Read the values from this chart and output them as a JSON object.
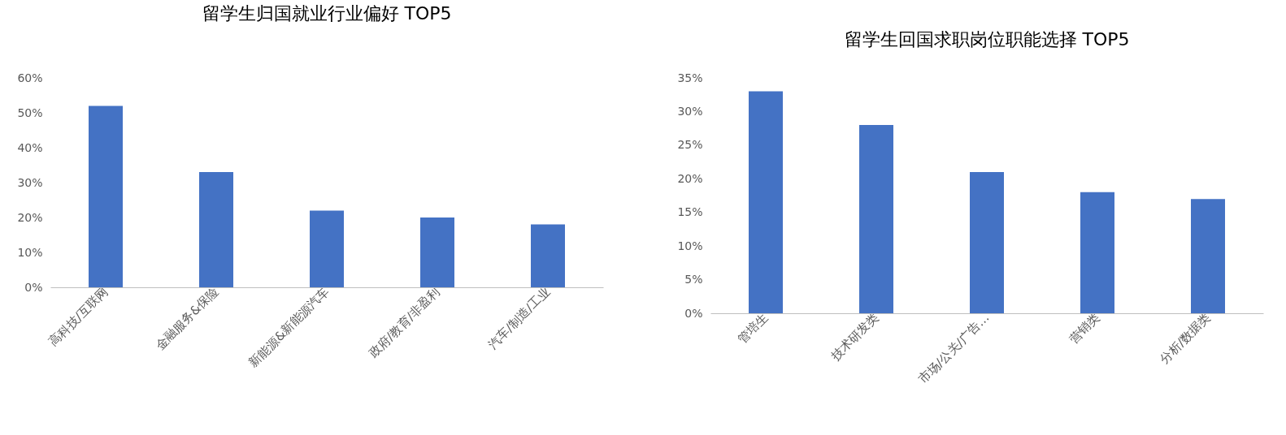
{
  "chart_data": [
    {
      "type": "bar",
      "title": "留学生归国就业行业偏好 TOP5",
      "categories": [
        "高科技/互联网",
        "金融服务&保险",
        "新能源&新能源汽车",
        "政府/教育/非盈利",
        "汽车/制造/工业"
      ],
      "values": [
        52,
        33,
        22,
        20,
        18
      ],
      "color": "#4472c4",
      "ylim": [
        0,
        60
      ],
      "yticks": [
        {
          "value": 0,
          "label": "0%"
        },
        {
          "value": 10,
          "label": "10%"
        },
        {
          "value": 20,
          "label": "20%"
        },
        {
          "value": 30,
          "label": "30%"
        },
        {
          "value": 40,
          "label": "40%"
        },
        {
          "value": 50,
          "label": "50%"
        },
        {
          "value": 60,
          "label": "60%"
        }
      ],
      "grid": false
    },
    {
      "type": "bar",
      "title": "留学生回国求职岗位职能选择 TOP5",
      "categories": [
        "管培生",
        "技术研发类",
        "市场/公关/广告…",
        "营销类",
        "分析/数据类"
      ],
      "values": [
        33,
        28,
        21,
        18,
        17
      ],
      "color": "#4472c4",
      "ylim": [
        0,
        35
      ],
      "yticks": [
        {
          "value": 0,
          "label": "0%"
        },
        {
          "value": 5,
          "label": "5%"
        },
        {
          "value": 10,
          "label": "10%"
        },
        {
          "value": 15,
          "label": "15%"
        },
        {
          "value": 20,
          "label": "20%"
        },
        {
          "value": 25,
          "label": "25%"
        },
        {
          "value": 30,
          "label": "30%"
        },
        {
          "value": 35,
          "label": "35%"
        }
      ],
      "grid": false
    }
  ]
}
